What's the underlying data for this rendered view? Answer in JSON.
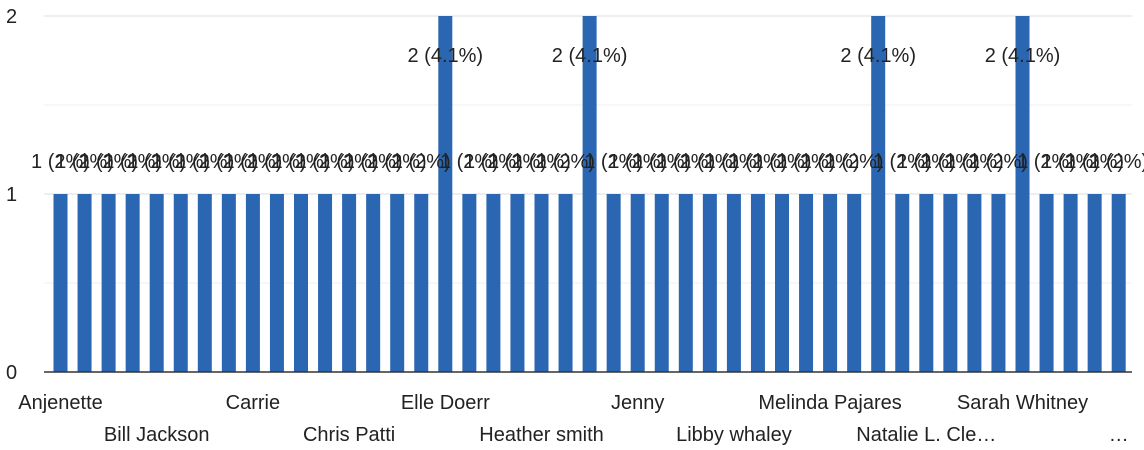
{
  "chart_data": {
    "type": "bar",
    "ylim": [
      0,
      2
    ],
    "yticks": [
      "0",
      "1",
      "2"
    ],
    "grid": true,
    "bar_color": "#2a66b1",
    "values": [
      1,
      1,
      1,
      1,
      1,
      1,
      1,
      1,
      1,
      1,
      1,
      1,
      1,
      1,
      1,
      1,
      2,
      1,
      1,
      1,
      1,
      1,
      2,
      1,
      1,
      1,
      1,
      1,
      1,
      1,
      1,
      1,
      1,
      1,
      2,
      1,
      1,
      1,
      1,
      1,
      2,
      1,
      1,
      1,
      1
    ],
    "category_labels_shown": [
      {
        "index": 0,
        "text": "Anjenette"
      },
      {
        "index": 4,
        "text": "Bill Jackson"
      },
      {
        "index": 8,
        "text": "Carrie"
      },
      {
        "index": 12,
        "text": "Chris Patti"
      },
      {
        "index": 16,
        "text": "Elle Doerr"
      },
      {
        "index": 20,
        "text": "Heather smith"
      },
      {
        "index": 24,
        "text": "Jenny"
      },
      {
        "index": 28,
        "text": "Libby whaley"
      },
      {
        "index": 32,
        "text": "Melinda Pajares"
      },
      {
        "index": 36,
        "text": "Natalie L. Cle…"
      },
      {
        "index": 40,
        "text": "Sarah Whitney"
      },
      {
        "index": 44,
        "text": "…"
      }
    ],
    "data_labels": {
      "one": "1 (2%)",
      "two": "2 (4.1%)"
    }
  }
}
